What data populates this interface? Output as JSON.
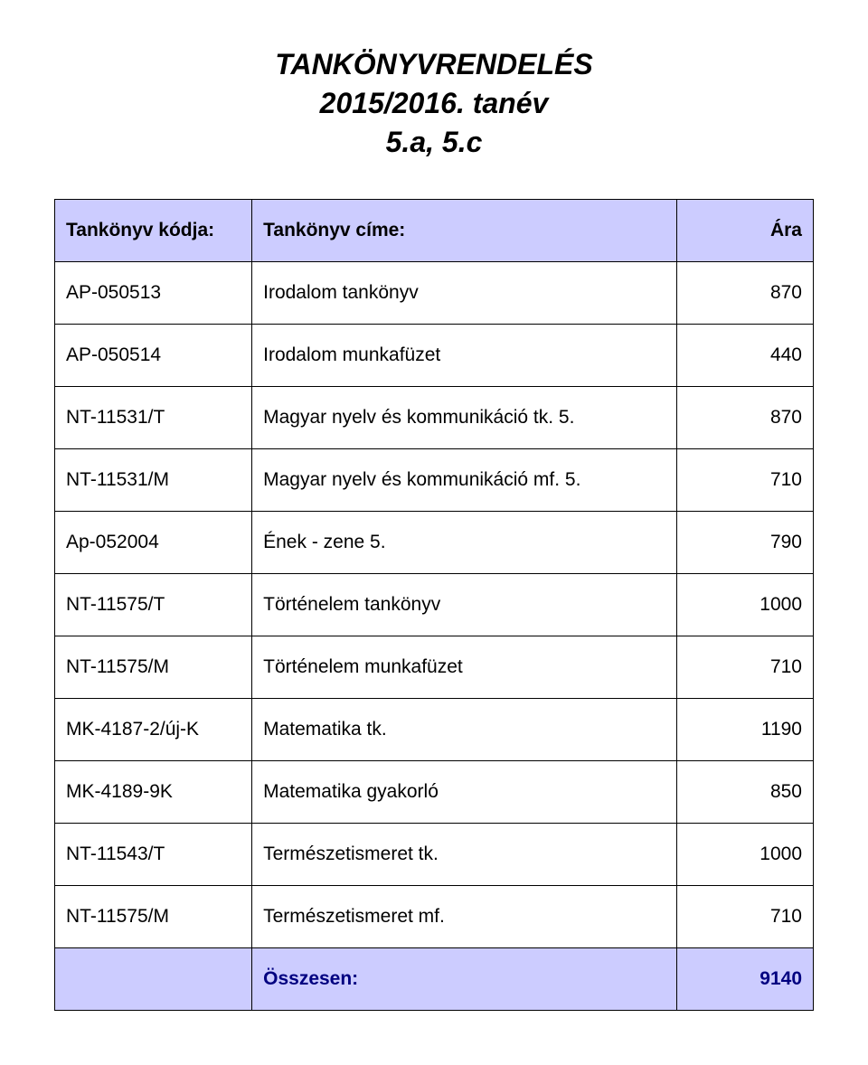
{
  "title": {
    "line1": "TANKÖNYVRENDELÉS",
    "line2": "2015/2016. tanév",
    "line3": "5.a, 5.c"
  },
  "table": {
    "header": {
      "code": "Tankönyv kódja:",
      "title": "Tankönyv címe:",
      "price": "Ára"
    },
    "header_bg": "#ccccff",
    "border_color": "#000000",
    "rows": [
      {
        "code": "AP-050513",
        "title": "Irodalom tankönyv",
        "price": "870"
      },
      {
        "code": "AP-050514",
        "title": "Irodalom munkafüzet",
        "price": "440"
      },
      {
        "code": "NT-11531/T",
        "title": "Magyar nyelv és kommunikáció tk. 5.",
        "price": "870"
      },
      {
        "code": "NT-11531/M",
        "title": "Magyar nyelv és kommunikáció mf. 5.",
        "price": "710"
      },
      {
        "code": "Ap-052004",
        "title": "Ének - zene 5.",
        "price": "790"
      },
      {
        "code": "NT-11575/T",
        "title": "Történelem tankönyv",
        "price": "1000"
      },
      {
        "code": "NT-11575/M",
        "title": "Történelem munkafüzet",
        "price": "710"
      },
      {
        "code": "MK-4187-2/új-K",
        "title": "Matematika tk.",
        "price": "1190"
      },
      {
        "code": "MK-4189-9K",
        "title": "Matematika gyakorló",
        "price": "850"
      },
      {
        "code": "NT-11543/T",
        "title": "Természetismeret tk.",
        "price": "1000"
      },
      {
        "code": "NT-11575/M",
        "title": "Természetismeret mf.",
        "price": "710"
      }
    ],
    "total": {
      "label": "Összesen:",
      "value": "9140",
      "text_color": "#000080",
      "bg_color": "#ccccff"
    }
  }
}
